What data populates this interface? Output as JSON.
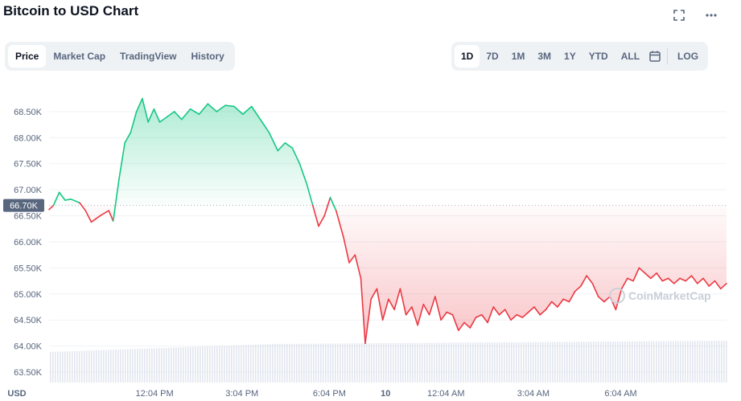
{
  "header": {
    "title": "Bitcoin to USD Chart",
    "expand_icon": "expand-icon",
    "more_icon": "more-icon"
  },
  "tabs": [
    "Price",
    "Market Cap",
    "TradingView",
    "History"
  ],
  "active_tab": "Price",
  "ranges": [
    "1D",
    "7D",
    "1M",
    "3M",
    "1Y",
    "YTD",
    "ALL"
  ],
  "active_range": "1D",
  "log_label": "LOG",
  "calendar_icon": "calendar-icon",
  "watermark": "CoinMarketCap",
  "colors": {
    "up": "#16c784",
    "down": "#ea3943",
    "volume": "#cfd6e4",
    "grid": "#eff2f5"
  },
  "chart_data": {
    "type": "area",
    "currency_label": "USD",
    "reference_value": 66.7,
    "reference_label": "66.70K",
    "ylim": [
      63.3,
      69.1
    ],
    "y_ticks": [
      63.5,
      64.0,
      64.5,
      65.0,
      65.5,
      66.0,
      66.5,
      67.0,
      67.5,
      68.0,
      68.5
    ],
    "y_tick_labels": [
      "63.50K",
      "64.00K",
      "64.50K",
      "65.00K",
      "65.50K",
      "66.00K",
      "66.50K",
      "67.00K",
      "67.50K",
      "68.00K",
      "68.50K"
    ],
    "x_ticks": [
      {
        "label": "12:04 PM",
        "t": 2.07
      },
      {
        "label": "3:04 PM",
        "t": 5.07
      },
      {
        "label": "6:04 PM",
        "t": 8.07
      },
      {
        "label": "10",
        "t": 10.0
      },
      {
        "label": "12:04 AM",
        "t": 12.07
      },
      {
        "label": "3:04 AM",
        "t": 15.07
      },
      {
        "label": "6:04 AM",
        "t": 18.07
      }
    ],
    "x_range": [
      -1.55,
      21.7
    ],
    "series": [
      {
        "values": [
          [
            -1.55,
            66.62
          ],
          [
            -1.4,
            66.7
          ],
          [
            -1.2,
            66.95
          ],
          [
            -1.0,
            66.8
          ],
          [
            -0.8,
            66.82
          ],
          [
            -0.5,
            66.75
          ],
          [
            -0.3,
            66.6
          ],
          [
            -0.1,
            66.38
          ],
          [
            0.2,
            66.5
          ],
          [
            0.5,
            66.6
          ],
          [
            0.65,
            66.4
          ],
          [
            0.85,
            67.2
          ],
          [
            1.05,
            67.9
          ],
          [
            1.25,
            68.1
          ],
          [
            1.45,
            68.5
          ],
          [
            1.65,
            68.75
          ],
          [
            1.85,
            68.3
          ],
          [
            2.05,
            68.55
          ],
          [
            2.25,
            68.3
          ],
          [
            2.5,
            68.4
          ],
          [
            2.75,
            68.5
          ],
          [
            3.0,
            68.35
          ],
          [
            3.3,
            68.55
          ],
          [
            3.6,
            68.45
          ],
          [
            3.9,
            68.65
          ],
          [
            4.2,
            68.5
          ],
          [
            4.5,
            68.62
          ],
          [
            4.8,
            68.6
          ],
          [
            5.1,
            68.45
          ],
          [
            5.4,
            68.6
          ],
          [
            5.7,
            68.35
          ],
          [
            6.0,
            68.1
          ],
          [
            6.3,
            67.75
          ],
          [
            6.55,
            67.9
          ],
          [
            6.8,
            67.8
          ],
          [
            7.05,
            67.5
          ],
          [
            7.3,
            67.1
          ],
          [
            7.5,
            66.7
          ],
          [
            7.7,
            66.3
          ],
          [
            7.9,
            66.5
          ],
          [
            8.1,
            66.85
          ],
          [
            8.3,
            66.6
          ],
          [
            8.55,
            66.1
          ],
          [
            8.75,
            65.6
          ],
          [
            8.95,
            65.75
          ],
          [
            9.15,
            65.3
          ],
          [
            9.3,
            64.05
          ],
          [
            9.5,
            64.9
          ],
          [
            9.7,
            65.1
          ],
          [
            9.9,
            64.5
          ],
          [
            10.1,
            64.9
          ],
          [
            10.3,
            64.7
          ],
          [
            10.5,
            65.1
          ],
          [
            10.7,
            64.6
          ],
          [
            10.9,
            64.75
          ],
          [
            11.1,
            64.4
          ],
          [
            11.3,
            64.8
          ],
          [
            11.5,
            64.6
          ],
          [
            11.7,
            64.95
          ],
          [
            11.9,
            64.5
          ],
          [
            12.1,
            64.65
          ],
          [
            12.3,
            64.6
          ],
          [
            12.5,
            64.3
          ],
          [
            12.7,
            64.45
          ],
          [
            12.9,
            64.35
          ],
          [
            13.1,
            64.55
          ],
          [
            13.3,
            64.6
          ],
          [
            13.5,
            64.45
          ],
          [
            13.7,
            64.75
          ],
          [
            13.9,
            64.6
          ],
          [
            14.1,
            64.7
          ],
          [
            14.3,
            64.5
          ],
          [
            14.5,
            64.6
          ],
          [
            14.7,
            64.55
          ],
          [
            14.9,
            64.65
          ],
          [
            15.1,
            64.75
          ],
          [
            15.3,
            64.6
          ],
          [
            15.5,
            64.7
          ],
          [
            15.7,
            64.85
          ],
          [
            15.9,
            64.75
          ],
          [
            16.1,
            64.9
          ],
          [
            16.3,
            64.85
          ],
          [
            16.5,
            65.05
          ],
          [
            16.7,
            65.15
          ],
          [
            16.9,
            65.35
          ],
          [
            17.1,
            65.2
          ],
          [
            17.3,
            64.95
          ],
          [
            17.5,
            64.85
          ],
          [
            17.7,
            64.95
          ],
          [
            17.9,
            64.7
          ],
          [
            18.1,
            65.1
          ],
          [
            18.3,
            65.3
          ],
          [
            18.5,
            65.25
          ],
          [
            18.7,
            65.5
          ],
          [
            18.9,
            65.4
          ],
          [
            19.1,
            65.3
          ],
          [
            19.3,
            65.4
          ],
          [
            19.5,
            65.25
          ],
          [
            19.7,
            65.3
          ],
          [
            19.9,
            65.2
          ],
          [
            20.1,
            65.3
          ],
          [
            20.3,
            65.25
          ],
          [
            20.5,
            65.35
          ],
          [
            20.7,
            65.2
          ],
          [
            20.9,
            65.3
          ],
          [
            21.1,
            65.15
          ],
          [
            21.3,
            65.25
          ],
          [
            21.5,
            65.1
          ],
          [
            21.7,
            65.2
          ]
        ]
      }
    ]
  }
}
